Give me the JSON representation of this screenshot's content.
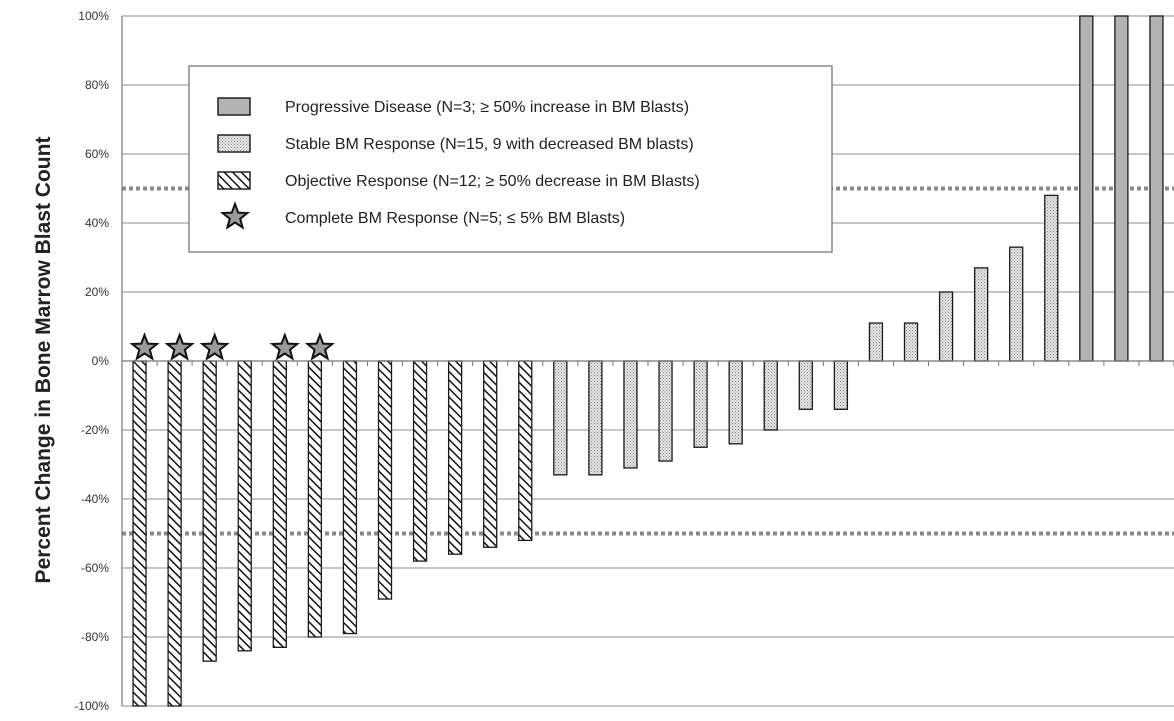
{
  "chart_data": {
    "type": "bar",
    "title": "",
    "xlabel": "",
    "ylabel": "Percent Change in Bone Marrow Blast Count",
    "ylim": [
      -100,
      100
    ],
    "y_ticks": [
      "-100%",
      "-80%",
      "-60%",
      "-40%",
      "-20%",
      "0%",
      "20%",
      "40%",
      "60%",
      "80%",
      "100%"
    ],
    "y_tick_values": [
      -100,
      -80,
      -60,
      -40,
      -20,
      0,
      20,
      40,
      60,
      80,
      100
    ],
    "grid": true,
    "reference_lines": [
      50,
      -50
    ],
    "legend_position": "upper-left",
    "series": [
      {
        "key": "objective",
        "name": "Objective Response (N=12; ≥ 50% decrease in BM Blasts)",
        "pattern": "hatch"
      },
      {
        "key": "stable",
        "name": "Stable BM Response (N=15, 9 with decreased BM blasts)",
        "pattern": "dots"
      },
      {
        "key": "progressive",
        "name": "Progressive Disease (N=3; ≥ 50% increase in BM Blasts)",
        "pattern": "gray"
      }
    ],
    "markers": [
      {
        "name": "Complete BM Response  (N=5; ≤ 5% BM Blasts)",
        "symbol": "star",
        "bars": [
          0,
          1,
          2,
          4,
          5
        ]
      }
    ],
    "legend_order": [
      "progressive",
      "stable",
      "objective",
      "complete"
    ],
    "bars": [
      {
        "value": -100,
        "group": "objective",
        "complete": true
      },
      {
        "value": -100,
        "group": "objective",
        "complete": true
      },
      {
        "value": -87,
        "group": "objective",
        "complete": true
      },
      {
        "value": -84,
        "group": "objective",
        "complete": false
      },
      {
        "value": -83,
        "group": "objective",
        "complete": true
      },
      {
        "value": -80,
        "group": "objective",
        "complete": true
      },
      {
        "value": -79,
        "group": "objective",
        "complete": false
      },
      {
        "value": -69,
        "group": "objective",
        "complete": false
      },
      {
        "value": -58,
        "group": "objective",
        "complete": false
      },
      {
        "value": -56,
        "group": "objective",
        "complete": false
      },
      {
        "value": -54,
        "group": "objective",
        "complete": false
      },
      {
        "value": -52,
        "group": "objective",
        "complete": false
      },
      {
        "value": -33,
        "group": "stable",
        "complete": false
      },
      {
        "value": -33,
        "group": "stable",
        "complete": false
      },
      {
        "value": -31,
        "group": "stable",
        "complete": false
      },
      {
        "value": -29,
        "group": "stable",
        "complete": false
      },
      {
        "value": -25,
        "group": "stable",
        "complete": false
      },
      {
        "value": -24,
        "group": "stable",
        "complete": false
      },
      {
        "value": -20,
        "group": "stable",
        "complete": false
      },
      {
        "value": -14,
        "group": "stable",
        "complete": false
      },
      {
        "value": -14,
        "group": "stable",
        "complete": false
      },
      {
        "value": 11,
        "group": "stable",
        "complete": false
      },
      {
        "value": 11,
        "group": "stable",
        "complete": false
      },
      {
        "value": 20,
        "group": "stable",
        "complete": false
      },
      {
        "value": 27,
        "group": "stable",
        "complete": false
      },
      {
        "value": 33,
        "group": "stable",
        "complete": false
      },
      {
        "value": 48,
        "group": "stable",
        "complete": false
      },
      {
        "value": 100,
        "group": "progressive",
        "complete": false
      },
      {
        "value": 100,
        "group": "progressive",
        "complete": false
      },
      {
        "value": 100,
        "group": "progressive",
        "complete": false
      }
    ]
  }
}
